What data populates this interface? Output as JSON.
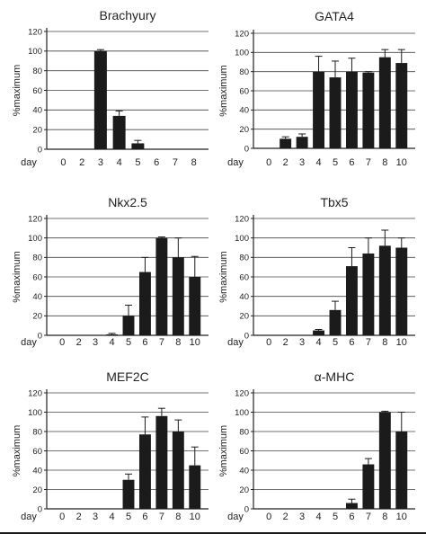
{
  "chart_data": [
    {
      "type": "bar",
      "title": "Brachyury",
      "ylabel": "%maximum",
      "xlabel": "day",
      "ylim": [
        0,
        120
      ],
      "yticks": [
        0,
        20,
        40,
        60,
        80,
        100,
        120
      ],
      "grid": true,
      "categories": [
        "0",
        "2",
        "3",
        "4",
        "5",
        "6",
        "7",
        "8"
      ],
      "values": [
        0,
        0,
        100,
        34,
        6,
        0,
        0,
        0
      ],
      "errors": [
        0,
        0,
        1.5,
        5,
        3,
        0,
        0,
        0
      ]
    },
    {
      "type": "bar",
      "title": "GATA4",
      "ylabel": "%maximum",
      "xlabel": "day",
      "ylim": [
        0,
        120
      ],
      "yticks": [
        0,
        20,
        40,
        60,
        80,
        100,
        120
      ],
      "grid": true,
      "categories": [
        "0",
        "2",
        "3",
        "4",
        "5",
        "6",
        "7",
        "8",
        "10"
      ],
      "values": [
        0,
        10,
        12,
        80,
        74,
        80,
        79,
        95,
        89
      ],
      "errors": [
        0,
        2,
        3,
        16,
        17,
        14,
        1,
        8,
        14
      ]
    },
    {
      "type": "bar",
      "title": "Nkx2.5",
      "ylabel": "%maximum",
      "xlabel": "day",
      "ylim": [
        0,
        120
      ],
      "yticks": [
        0,
        20,
        40,
        60,
        80,
        100,
        120
      ],
      "grid": true,
      "categories": [
        "0",
        "2",
        "3",
        "4",
        "5",
        "6",
        "7",
        "8",
        "10"
      ],
      "values": [
        0,
        0,
        0,
        1,
        20,
        65,
        100,
        80,
        60
      ],
      "errors": [
        0,
        0,
        0,
        1,
        11,
        15,
        1,
        20,
        21
      ]
    },
    {
      "type": "bar",
      "title": "Tbx5",
      "ylabel": "%maximum",
      "xlabel": "day",
      "ylim": [
        0,
        120
      ],
      "yticks": [
        0,
        20,
        40,
        60,
        80,
        100,
        120
      ],
      "grid": true,
      "categories": [
        "0",
        "2",
        "3",
        "4",
        "5",
        "6",
        "7",
        "8",
        "10"
      ],
      "values": [
        0,
        0,
        0,
        5,
        26,
        71,
        84,
        92,
        90
      ],
      "errors": [
        0,
        0,
        0,
        1,
        9,
        19,
        16,
        16,
        10
      ]
    },
    {
      "type": "bar",
      "title": "MEF2C",
      "ylabel": "%maximum",
      "xlabel": "day",
      "ylim": [
        0,
        120
      ],
      "yticks": [
        0,
        20,
        40,
        60,
        80,
        100,
        120
      ],
      "grid": true,
      "categories": [
        "0",
        "2",
        "3",
        "4",
        "5",
        "6",
        "7",
        "8",
        "10"
      ],
      "values": [
        0,
        0,
        0,
        0,
        30,
        77,
        96,
        80,
        45
      ],
      "errors": [
        0,
        0,
        0,
        0,
        6,
        18,
        8,
        12,
        19
      ]
    },
    {
      "type": "bar",
      "title": "α-MHC",
      "ylabel": "%maximum",
      "xlabel": "day",
      "ylim": [
        0,
        120
      ],
      "yticks": [
        0,
        20,
        40,
        60,
        80,
        100,
        120
      ],
      "grid": true,
      "categories": [
        "0",
        "2",
        "3",
        "4",
        "5",
        "6",
        "7",
        "8",
        "10"
      ],
      "values": [
        0,
        0,
        0,
        0,
        0,
        6,
        46,
        100,
        80
      ],
      "errors": [
        0,
        0,
        0,
        0,
        0,
        4,
        6,
        1,
        20
      ]
    }
  ]
}
